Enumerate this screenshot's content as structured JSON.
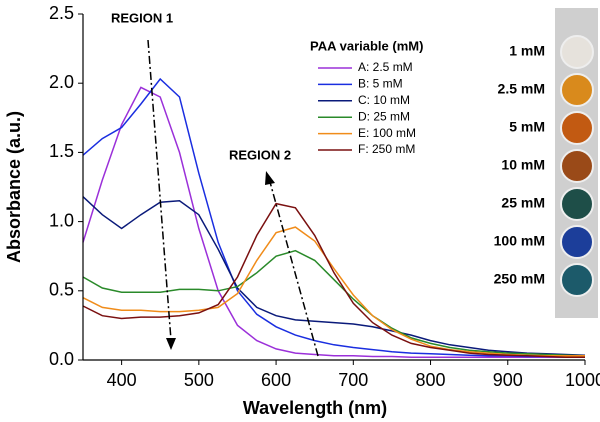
{
  "chart_data": {
    "type": "line",
    "ylabel": "Absorbance (a.u.)",
    "xlabel": "Wavelength (nm)",
    "legend_title": "PAA variable (mM)",
    "annotations": [
      "REGION 1",
      "REGION 2"
    ],
    "xlim": [
      350,
      1000
    ],
    "ylim": [
      0,
      2.5
    ],
    "xticks": [
      400,
      500,
      600,
      700,
      800,
      900,
      1000
    ],
    "yticks": [
      {
        "value": 0,
        "label": "0.0"
      },
      0.5,
      {
        "value": 1,
        "label": "1.0"
      },
      1.5,
      {
        "value": 2,
        "label": "2.0"
      },
      2.5
    ],
    "x": [
      350,
      375,
      400,
      425,
      450,
      475,
      500,
      525,
      550,
      575,
      600,
      625,
      650,
      675,
      700,
      725,
      750,
      775,
      800,
      825,
      850,
      875,
      900,
      925,
      950,
      975,
      1000
    ],
    "series": [
      {
        "name": "A: 2.5 mM",
        "color": "#9b30d9",
        "values": [
          0.85,
          1.3,
          1.7,
          1.97,
          1.9,
          1.5,
          0.95,
          0.5,
          0.25,
          0.14,
          0.08,
          0.05,
          0.04,
          0.03,
          0.03,
          0.025,
          0.025,
          0.02,
          0.02,
          0.02,
          0.02,
          0.02,
          0.02,
          0.02,
          0.02,
          0.02,
          0.02
        ]
      },
      {
        "name": "B: 5 mM",
        "color": "#1a2ee0",
        "values": [
          1.48,
          1.6,
          1.68,
          1.85,
          2.03,
          1.9,
          1.35,
          0.85,
          0.5,
          0.33,
          0.24,
          0.18,
          0.14,
          0.11,
          0.09,
          0.075,
          0.06,
          0.05,
          0.045,
          0.04,
          0.035,
          0.03,
          0.03,
          0.025,
          0.025,
          0.02,
          0.02
        ]
      },
      {
        "name": "C: 10 mM",
        "color": "#0a1a7a",
        "values": [
          1.18,
          1.05,
          0.95,
          1.05,
          1.14,
          1.15,
          1.05,
          0.8,
          0.52,
          0.38,
          0.32,
          0.29,
          0.28,
          0.27,
          0.26,
          0.24,
          0.21,
          0.18,
          0.14,
          0.11,
          0.09,
          0.07,
          0.06,
          0.05,
          0.045,
          0.04,
          0.035
        ]
      },
      {
        "name": "D: 25 mM",
        "color": "#2a8a2a",
        "values": [
          0.6,
          0.52,
          0.49,
          0.49,
          0.49,
          0.51,
          0.51,
          0.5,
          0.53,
          0.63,
          0.75,
          0.79,
          0.72,
          0.58,
          0.44,
          0.32,
          0.23,
          0.16,
          0.12,
          0.09,
          0.07,
          0.06,
          0.05,
          0.045,
          0.04,
          0.035,
          0.03
        ]
      },
      {
        "name": "E: 100 mM",
        "color": "#f08c1a",
        "values": [
          0.45,
          0.38,
          0.36,
          0.36,
          0.35,
          0.35,
          0.36,
          0.38,
          0.48,
          0.72,
          0.92,
          0.96,
          0.86,
          0.66,
          0.47,
          0.32,
          0.22,
          0.15,
          0.1,
          0.075,
          0.06,
          0.05,
          0.04,
          0.035,
          0.03,
          0.03,
          0.03
        ]
      },
      {
        "name": "F: 250 mM",
        "color": "#7a1010",
        "values": [
          0.39,
          0.32,
          0.3,
          0.31,
          0.31,
          0.32,
          0.34,
          0.4,
          0.6,
          0.9,
          1.13,
          1.1,
          0.9,
          0.63,
          0.41,
          0.27,
          0.18,
          0.12,
          0.09,
          0.07,
          0.05,
          0.04,
          0.035,
          0.03,
          0.025,
          0.02,
          0.02
        ]
      }
    ],
    "photo_labels": [
      "1 mM",
      "2.5 mM",
      "5 mM",
      "10 mM",
      "25 mM",
      "100 mM",
      "250 mM"
    ],
    "photo_well_colors": [
      "#e6e2dc",
      "#d98a1c",
      "#c25a12",
      "#9a4a18",
      "#1e4e48",
      "#1c3e9a",
      "#1c5a6a"
    ]
  }
}
